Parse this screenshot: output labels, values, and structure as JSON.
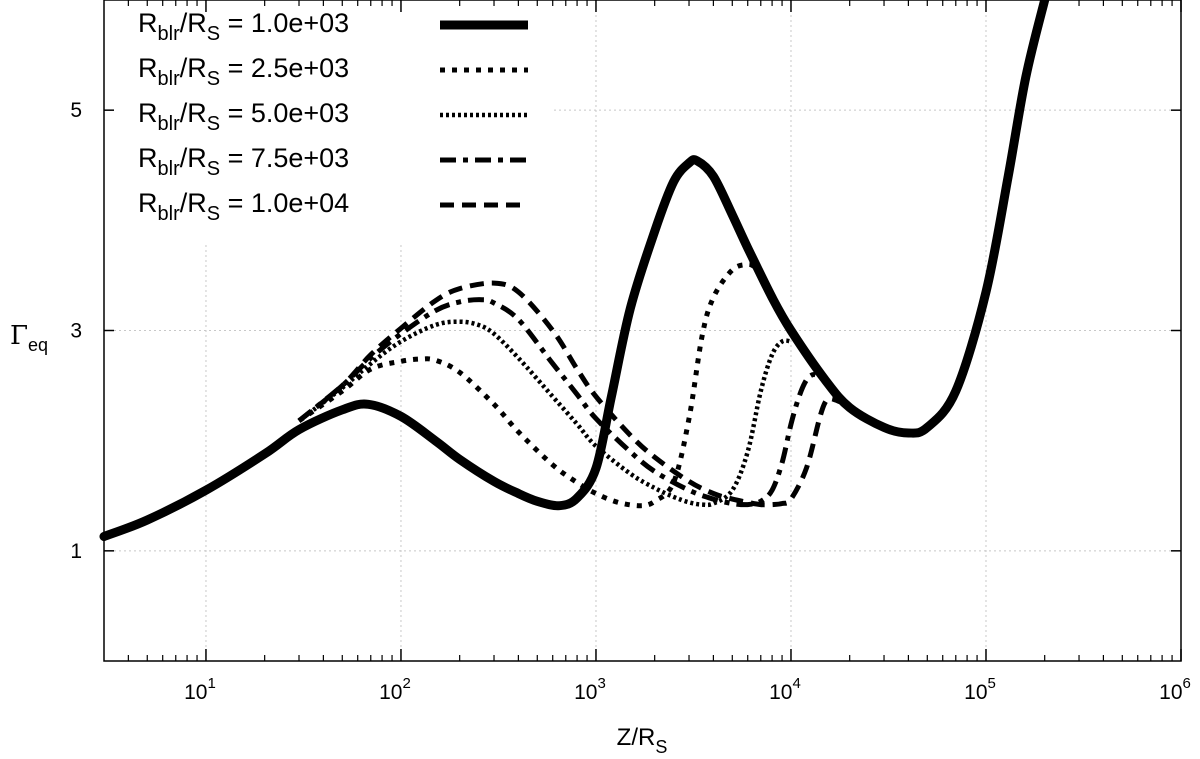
{
  "chart_data": {
    "type": "line",
    "xlabel": "Z/R",
    "xlabel_sub": "S",
    "ylabel": "Γ",
    "ylabel_sub": "eq",
    "xscale": "log",
    "xlim": [
      3,
      1000000
    ],
    "ylim": [
      0,
      6
    ],
    "grid": true,
    "legend_position": "top-left",
    "x_ticks": [
      {
        "base": "10",
        "exp": "1",
        "value": 10
      },
      {
        "base": "10",
        "exp": "2",
        "value": 100
      },
      {
        "base": "10",
        "exp": "3",
        "value": 1000
      },
      {
        "base": "10",
        "exp": "4",
        "value": 10000
      },
      {
        "base": "10",
        "exp": "5",
        "value": 100000
      },
      {
        "base": "10",
        "exp": "6",
        "value": 1000000
      }
    ],
    "y_ticks": [
      {
        "label": "1",
        "value": 1
      },
      {
        "label": "3",
        "value": 3
      },
      {
        "label": "5",
        "value": 5
      }
    ],
    "series": [
      {
        "name": "1.0e+03",
        "legend_prefix": "R",
        "legend_sub1": "blr",
        "legend_mid": "/R",
        "legend_sub2": "S",
        "legend_suffix": " = 1.0e+03",
        "style": "solid-thick",
        "x": [
          3,
          5,
          10,
          20,
          30,
          50,
          68,
          100,
          150,
          200,
          300,
          400,
          500,
          650,
          800,
          1000,
          1200,
          1500,
          2000,
          2500,
          3000,
          3300,
          4000,
          5000,
          6000,
          8000,
          10000,
          15000,
          20000,
          30000,
          40000,
          50000,
          70000,
          100000,
          130000,
          160000,
          200000
        ],
        "y": [
          1.13,
          1.28,
          1.55,
          1.88,
          2.1,
          2.28,
          2.33,
          2.22,
          2.0,
          1.83,
          1.63,
          1.52,
          1.45,
          1.41,
          1.48,
          1.75,
          2.4,
          3.2,
          3.9,
          4.35,
          4.52,
          4.54,
          4.4,
          4.05,
          3.75,
          3.3,
          3.0,
          2.55,
          2.3,
          2.12,
          2.07,
          2.12,
          2.45,
          3.35,
          4.4,
          5.3,
          6.0
        ]
      },
      {
        "name": "2.5e+03",
        "legend_prefix": "R",
        "legend_sub1": "blr",
        "legend_mid": "/R",
        "legend_sub2": "S",
        "legend_suffix": " = 2.5e+03",
        "style": "dots-thick",
        "x": [
          30,
          50,
          70,
          100,
          125,
          150,
          200,
          300,
          400,
          600,
          800,
          1000,
          1300,
          1700,
          2000,
          2500,
          3000,
          3500,
          4000,
          5000,
          6000,
          6500
        ],
        "y": [
          2.18,
          2.45,
          2.65,
          2.72,
          2.74,
          2.73,
          2.62,
          2.33,
          2.08,
          1.78,
          1.62,
          1.52,
          1.44,
          1.41,
          1.45,
          1.62,
          2.2,
          2.95,
          3.3,
          3.55,
          3.6,
          3.58
        ]
      },
      {
        "name": "5.0e+03",
        "legend_prefix": "R",
        "legend_sub1": "blr",
        "legend_mid": "/R",
        "legend_sub2": "S",
        "legend_suffix": " = 5.0e+03",
        "style": "dots-fine",
        "x": [
          30,
          50,
          70,
          100,
          150,
          200,
          250,
          300,
          400,
          600,
          800,
          1000,
          1500,
          2000,
          2500,
          3000,
          3500,
          4000,
          5000,
          6000,
          7000,
          8000,
          9000,
          10000
        ],
        "y": [
          2.18,
          2.48,
          2.7,
          2.9,
          3.05,
          3.08,
          3.05,
          2.97,
          2.75,
          2.4,
          2.15,
          1.95,
          1.7,
          1.57,
          1.49,
          1.44,
          1.42,
          1.43,
          1.55,
          1.9,
          2.45,
          2.78,
          2.9,
          2.9
        ]
      },
      {
        "name": "7.5e+03",
        "legend_prefix": "R",
        "legend_sub1": "blr",
        "legend_mid": "/R",
        "legend_sub2": "S",
        "legend_suffix": " = 7.5e+03",
        "style": "dashdot",
        "x": [
          30,
          50,
          70,
          100,
          150,
          200,
          260,
          300,
          400,
          600,
          800,
          1000,
          1500,
          2000,
          3000,
          4000,
          5000,
          6000,
          7000,
          8000,
          9000,
          10000,
          11000,
          12000,
          13000,
          14000
        ],
        "y": [
          2.18,
          2.5,
          2.75,
          2.97,
          3.18,
          3.26,
          3.28,
          3.25,
          3.1,
          2.7,
          2.42,
          2.2,
          1.9,
          1.72,
          1.55,
          1.47,
          1.43,
          1.42,
          1.45,
          1.55,
          1.8,
          2.15,
          2.4,
          2.55,
          2.6,
          2.58
        ]
      },
      {
        "name": "1.0e+04",
        "legend_prefix": "R",
        "legend_sub1": "blr",
        "legend_mid": "/R",
        "legend_sub2": "S",
        "legend_suffix": " = 1.0e+04",
        "style": "dashed",
        "x": [
          30,
          50,
          70,
          100,
          150,
          200,
          300,
          400,
          600,
          800,
          1000,
          1500,
          2000,
          3000,
          4000,
          5000,
          6000,
          7000,
          8000,
          9000,
          10000,
          12000,
          14000,
          15000,
          16000,
          18000
        ],
        "y": [
          2.18,
          2.5,
          2.78,
          3.02,
          3.27,
          3.38,
          3.43,
          3.35,
          3.0,
          2.65,
          2.4,
          2.05,
          1.85,
          1.63,
          1.52,
          1.47,
          1.44,
          1.42,
          1.42,
          1.43,
          1.47,
          1.75,
          2.2,
          2.35,
          2.38,
          2.35
        ]
      }
    ]
  }
}
